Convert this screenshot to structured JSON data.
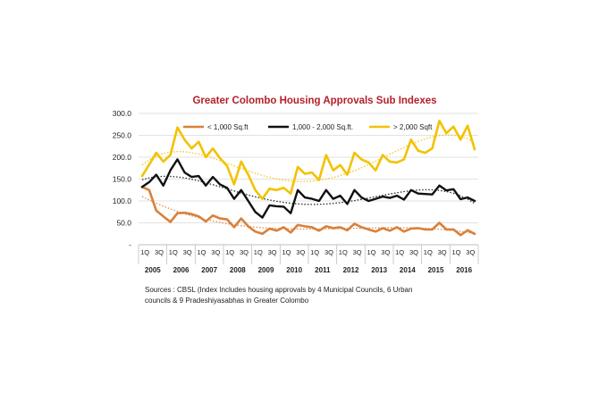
{
  "chart_data": {
    "type": "line",
    "title": "Greater Colombo Housing Approvals Sub Indexes",
    "title_color": "#b3202a",
    "ylim": [
      0,
      300
    ],
    "yticks": [
      "300.0",
      "250.0",
      "200.0",
      "150.0",
      "100.0",
      "50.0",
      "-"
    ],
    "ytick_values": [
      300,
      250,
      200,
      150,
      100,
      50,
      0
    ],
    "grid": true,
    "quarter_labels": [
      "1Q",
      "3Q"
    ],
    "years": [
      "2005",
      "2006",
      "2007",
      "2008",
      "2009",
      "2010",
      "2011",
      "2012",
      "2013",
      "2014",
      "2015",
      "2016"
    ],
    "x": [
      "2005Q1",
      "2005Q2",
      "2005Q3",
      "2005Q4",
      "2006Q1",
      "2006Q2",
      "2006Q3",
      "2006Q4",
      "2007Q1",
      "2007Q2",
      "2007Q3",
      "2007Q4",
      "2008Q1",
      "2008Q2",
      "2008Q3",
      "2008Q4",
      "2009Q1",
      "2009Q2",
      "2009Q3",
      "2009Q4",
      "2010Q1",
      "2010Q2",
      "2010Q3",
      "2010Q4",
      "2011Q1",
      "2011Q2",
      "2011Q3",
      "2011Q4",
      "2012Q1",
      "2012Q2",
      "2012Q3",
      "2012Q4",
      "2013Q1",
      "2013Q2",
      "2013Q3",
      "2013Q4",
      "2014Q1",
      "2014Q2",
      "2014Q3",
      "2014Q4",
      "2015Q1",
      "2015Q2",
      "2015Q3",
      "2015Q4",
      "2016Q1",
      "2016Q2",
      "2016Q3",
      "2016Q4"
    ],
    "series": [
      {
        "name": "< 1,000 Sq.ft",
        "color": "#d9803a",
        "values": [
          132,
          125,
          78,
          65,
          52,
          72,
          73,
          70,
          65,
          53,
          67,
          60,
          58,
          40,
          60,
          42,
          30,
          25,
          37,
          32,
          40,
          28,
          45,
          42,
          40,
          32,
          42,
          38,
          40,
          33,
          48,
          40,
          35,
          30,
          38,
          32,
          40,
          30,
          37,
          38,
          35,
          35,
          50,
          35,
          35,
          22,
          33,
          25
        ]
      },
      {
        "name": "1,000 - 2,000 Sq.ft.",
        "color": "#111111",
        "values": [
          132,
          143,
          160,
          135,
          170,
          195,
          165,
          155,
          157,
          135,
          155,
          138,
          130,
          105,
          125,
          100,
          75,
          62,
          90,
          88,
          87,
          72,
          125,
          108,
          105,
          100,
          125,
          105,
          112,
          93,
          125,
          108,
          100,
          105,
          110,
          107,
          112,
          103,
          125,
          117,
          116,
          115,
          135,
          124,
          127,
          104,
          108,
          100
        ]
      },
      {
        "name": "> 2,000 Sqft",
        "color": "#f2c200",
        "values": [
          157,
          183,
          210,
          190,
          205,
          268,
          240,
          220,
          235,
          200,
          220,
          198,
          180,
          138,
          190,
          160,
          125,
          105,
          128,
          125,
          130,
          117,
          178,
          162,
          165,
          148,
          205,
          170,
          182,
          160,
          210,
          195,
          188,
          170,
          205,
          190,
          188,
          195,
          240,
          215,
          210,
          220,
          283,
          255,
          270,
          240,
          272,
          218
        ]
      }
    ],
    "legend_position": "top",
    "note": [
      "Sources : CBSL  (Index Includes housing approvals by 4  Municipal Councils,   6 Urban",
      "councils & 9 Pradeshiyasabhas in Greater Colombo"
    ]
  }
}
